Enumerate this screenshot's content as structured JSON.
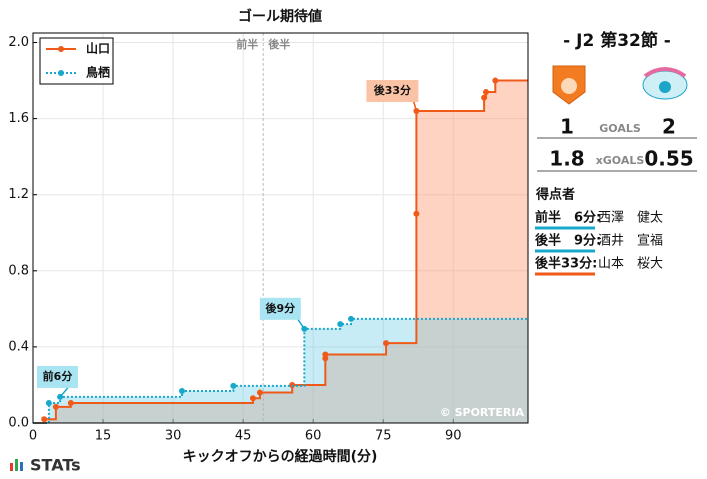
{
  "chart_data": {
    "type": "step",
    "title": "ゴール期待値",
    "x_label": "キックオフからの経過時間(分)",
    "series": [
      {
        "name": "山口",
        "color": "#f05a19",
        "fill": "rgba(252,150,110,0.42)",
        "dash": false,
        "x": [
          2.4,
          4.9,
          8.1,
          47.1,
          48.6,
          55.5,
          62.6,
          62.6,
          75.6,
          82.1,
          82.1,
          96.6,
          97.0,
          99.0
        ],
        "values": [
          0.02,
          0.085,
          0.105,
          0.13,
          0.16,
          0.2,
          0.34,
          0.36,
          0.42,
          1.1,
          1.64,
          1.71,
          1.74,
          1.8
        ]
      },
      {
        "name": "鳥栖",
        "color": "#17a8cc",
        "fill": "rgba(110,205,230,0.38)",
        "dash": true,
        "x": [
          3.4,
          5.8,
          31.9,
          42.9,
          58.1,
          65.8,
          68.1
        ],
        "values": [
          0.105,
          0.137,
          0.168,
          0.195,
          0.495,
          0.52,
          0.547
        ]
      }
    ],
    "xlim": [
      0,
      106
    ],
    "xticks": [
      0,
      15,
      30,
      45,
      60,
      75,
      90
    ],
    "ylim": [
      0,
      2.05
    ],
    "yticks": [
      {
        "value": 0,
        "label": "0.0"
      },
      0.4,
      0.8,
      1.2,
      1.6,
      {
        "value": 2,
        "label": "2.0"
      }
    ],
    "grid": true,
    "legend": "upper left",
    "half_time": {
      "x": 49.3,
      "left": "前半",
      "right": "後半"
    },
    "annotations": [
      {
        "text": "前6分",
        "x": 5.8,
        "y": 0.137,
        "color": "#a9e4f2"
      },
      {
        "text": "後9分",
        "x": 58.1,
        "y": 0.495,
        "color": "#a9e4f2"
      },
      {
        "text": "後33分",
        "x": 82.1,
        "y": 1.64,
        "color": "#fbc3a6"
      }
    ],
    "watermark": "© SPORTERIA"
  },
  "panel": {
    "round": "-  J2 第32節  -",
    "home_goals": "1",
    "away_goals": "2",
    "goals_label": "GOALS",
    "home_xg": "1.8",
    "away_xg": "0.55",
    "xg_label": "xGOALS",
    "scorers_title": "得点者",
    "scorers": [
      {
        "time": "前半　6分:",
        "name": "西澤　健太",
        "color": "#17a8cc"
      },
      {
        "time": "後半　9分:",
        "name": "酒井　宣福",
        "color": "#17a8cc"
      },
      {
        "time": "後半33分:",
        "name": "山本　桜大",
        "color": "#f05a19"
      }
    ]
  },
  "brand": "STATs"
}
